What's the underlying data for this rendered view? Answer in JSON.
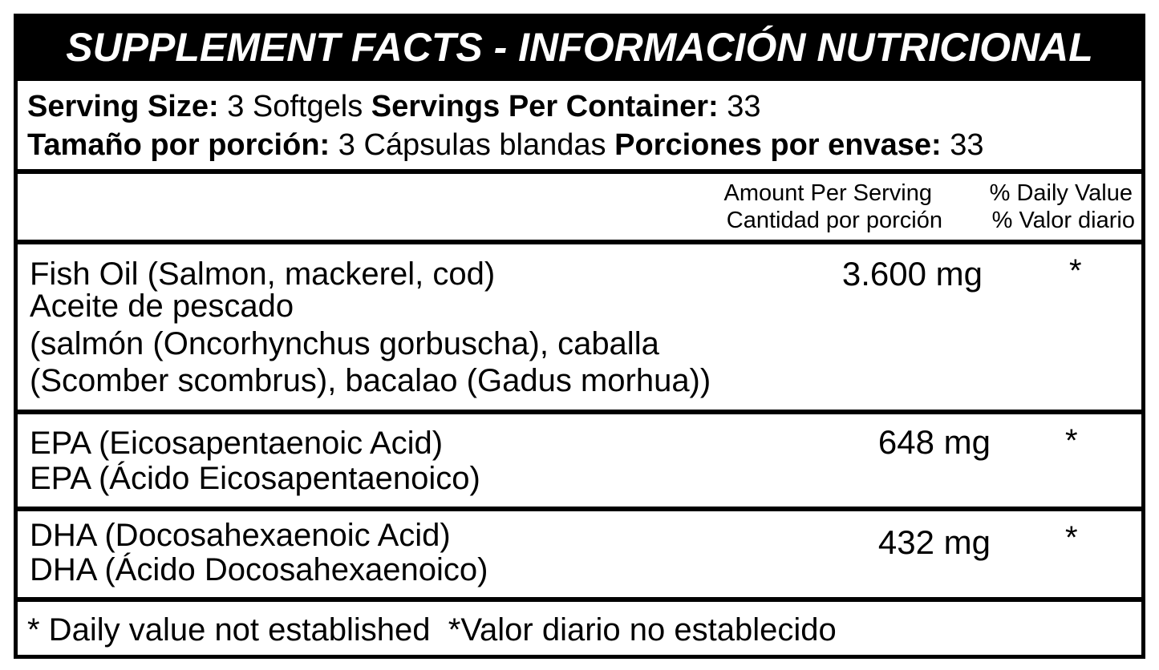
{
  "header": {
    "title": "SUPPLEMENT FACTS - INFORMACIÓN NUTRICIONAL"
  },
  "serving": [
    {
      "size_label": "Serving Size:",
      "size": "3 Softgels",
      "count_label": "Servings Per Container:",
      "count": "33"
    },
    {
      "size_label": "Tamaño por porción:",
      "size": "3 Cápsulas blandas",
      "count_label": "Porciones por envase:",
      "count": "33"
    }
  ],
  "columns": {
    "amount": [
      "Amount Per Serving",
      "Cantidad por porción"
    ],
    "daily_value": [
      "% Daily Value",
      "% Valor diario"
    ]
  },
  "rows": [
    {
      "name_lines": [
        "Fish Oil (Salmon, mackerel, cod)",
        "Aceite de pescado",
        "(salmón (Oncorhynchus gorbuscha), caballa",
        "(Scomber scombrus), bacalao (Gadus morhua))"
      ],
      "amount": "3.600 mg",
      "daily_value": "*"
    },
    {
      "name_lines": [
        "EPA (Eicosapentaenoic Acid)",
        "EPA (Ácido Eicosapentaenoico)"
      ],
      "amount": "648 mg",
      "daily_value": "*"
    },
    {
      "name_lines": [
        "DHA (Docosahexaenoic Acid)",
        "DHA (Ácido Docosahexaenoico)"
      ],
      "amount": "432 mg",
      "daily_value": "*"
    }
  ],
  "footnote": "* Daily value not established  *Valor diario no establecido"
}
